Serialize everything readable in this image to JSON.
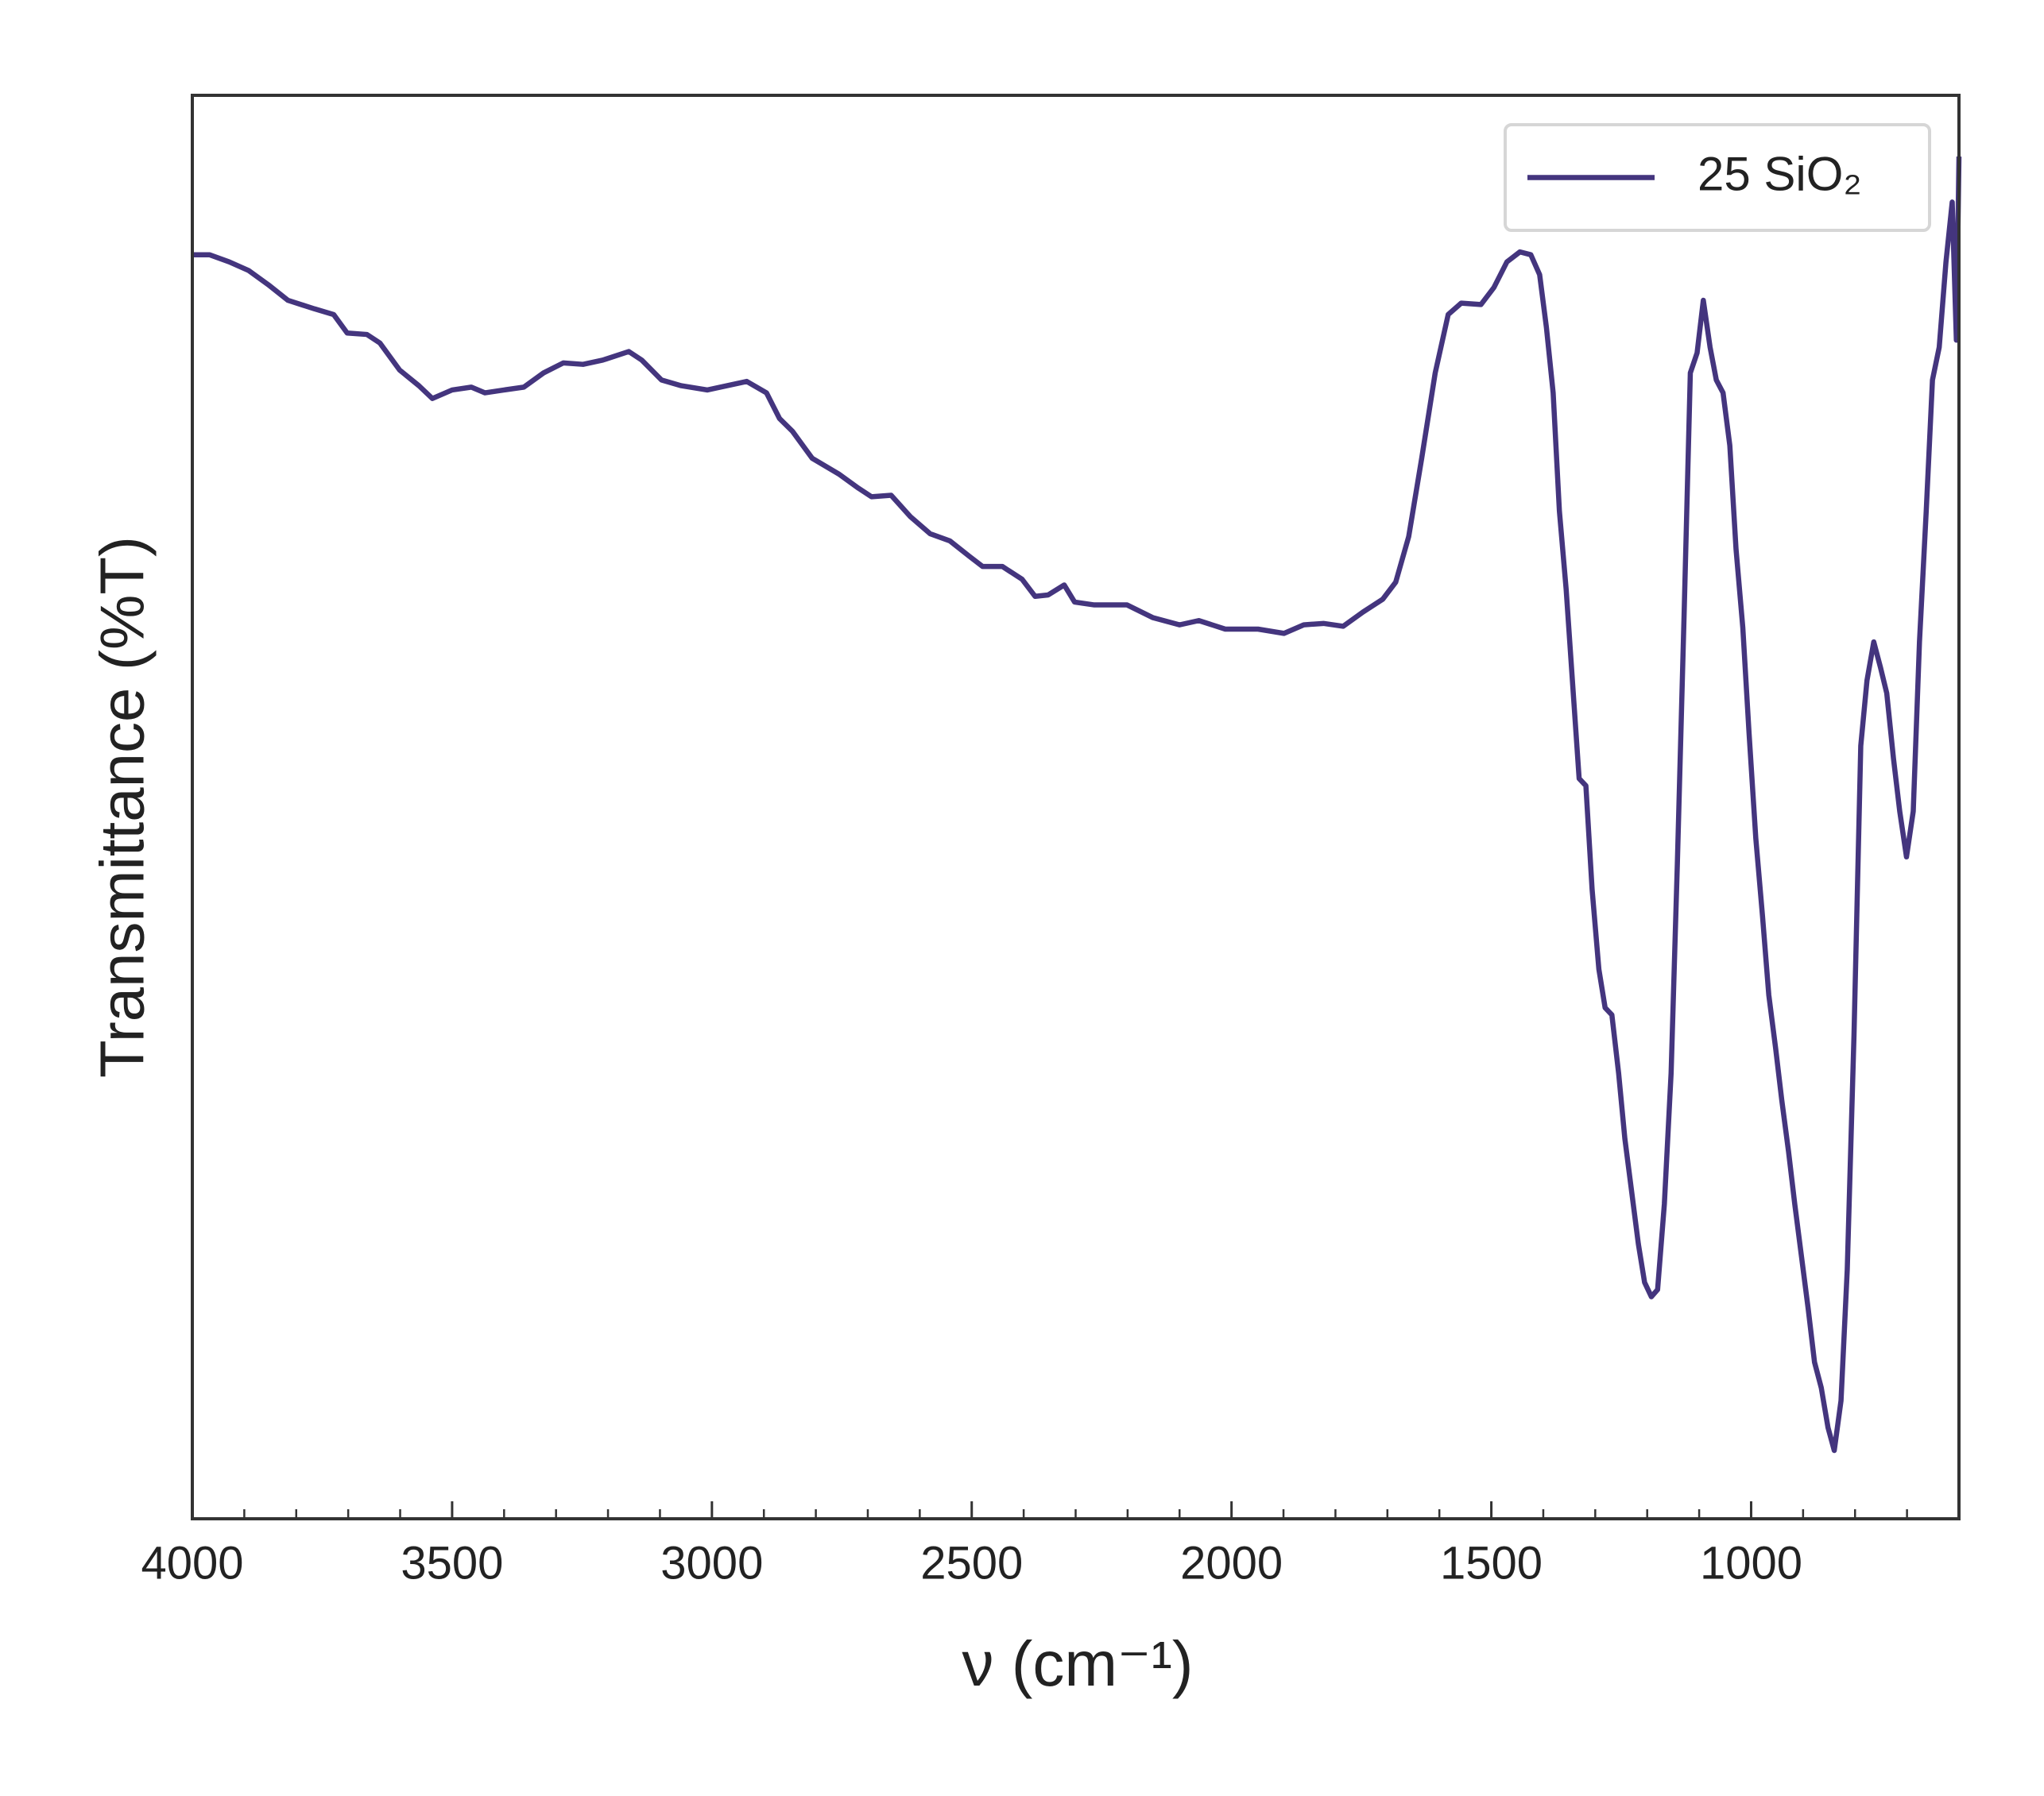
{
  "chart_data": {
    "type": "line",
    "xlabel": "ν (cm⁻¹)",
    "ylabel": "Transmittance (%T)",
    "xlim": [
      4000,
      600
    ],
    "ylim": [
      0,
      100
    ],
    "xticks": [
      4000,
      3500,
      3000,
      2500,
      2000,
      1500,
      1000
    ],
    "xminorticks": [
      3900,
      3800,
      3700,
      3600,
      3400,
      3300,
      3200,
      3100,
      2900,
      2800,
      2700,
      2600,
      2400,
      2300,
      2200,
      2100,
      1900,
      1800,
      1700,
      1600,
      1400,
      1300,
      1200,
      1100,
      900,
      800,
      700
    ],
    "legend": "upper right",
    "x": [
      4000,
      3967,
      3929,
      3892,
      3854,
      3816,
      3765,
      3728,
      3702,
      3664,
      3639,
      3601,
      3564,
      3538,
      3500,
      3463,
      3437,
      3400,
      3362,
      3324,
      3286,
      3248,
      3210,
      3160,
      3135,
      3097,
      3059,
      3009,
      2971,
      2933,
      2895,
      2870,
      2845,
      2807,
      2756,
      2718,
      2693,
      2655,
      2618,
      2580,
      2542,
      2504,
      2479,
      2441,
      2403,
      2378,
      2353,
      2322,
      2302,
      2264,
      2201,
      2151,
      2100,
      2063,
      2012,
      1949,
      1899,
      1861,
      1823,
      1785,
      1747,
      1709,
      1684,
      1659,
      1634,
      1608,
      1583,
      1558,
      1520,
      1495,
      1470,
      1445,
      1424,
      1407,
      1394,
      1381,
      1369,
      1356,
      1344,
      1331,
      1318,
      1306,
      1293,
      1281,
      1268,
      1255,
      1243,
      1230,
      1217,
      1205,
      1192,
      1180,
      1167,
      1154,
      1142,
      1129,
      1117,
      1104,
      1092,
      1079,
      1067,
      1054,
      1041,
      1029,
      1016,
      1004,
      991,
      978,
      966,
      953,
      941,
      928,
      916,
      903,
      890,
      878,
      865,
      852,
      840,
      827,
      815,
      802,
      789,
      777,
      764,
      751,
      739,
      726,
      714,
      701,
      688,
      676,
      663,
      651,
      638,
      625,
      613,
      605,
      600
    ],
    "series": [
      {
        "name": "25 SiO₂",
        "color": "#44357e",
        "values": [
          88.8,
          88.8,
          88.3,
          87.7,
          86.7,
          85.6,
          85.0,
          84.6,
          83.3,
          83.2,
          82.6,
          80.7,
          79.6,
          78.7,
          79.3,
          79.5,
          79.1,
          79.3,
          79.5,
          80.5,
          81.2,
          81.1,
          81.4,
          82.0,
          81.4,
          80.0,
          79.6,
          79.3,
          79.6,
          79.9,
          79.1,
          77.3,
          76.4,
          74.5,
          73.4,
          72.4,
          71.8,
          71.9,
          70.4,
          69.2,
          68.7,
          67.6,
          66.9,
          66.9,
          66.0,
          64.8,
          64.9,
          65.6,
          64.4,
          64.2,
          64.2,
          63.3,
          62.8,
          63.1,
          62.5,
          62.5,
          62.2,
          62.8,
          62.9,
          62.7,
          63.7,
          64.6,
          65.8,
          69.0,
          74.5,
          80.5,
          84.6,
          85.4,
          85.3,
          86.5,
          88.3,
          89.0,
          88.8,
          87.4,
          83.7,
          79.1,
          70.8,
          65.3,
          58.9,
          52.0,
          51.5,
          44.2,
          38.6,
          35.9,
          35.4,
          31.3,
          26.7,
          23.0,
          19.3,
          16.6,
          15.6,
          16.1,
          22.1,
          31.3,
          46.0,
          63.5,
          80.5,
          81.9,
          85.6,
          82.3,
          80.0,
          79.1,
          75.4,
          68.1,
          62.6,
          55.2,
          47.8,
          42.3,
          36.8,
          33.1,
          29.4,
          25.8,
          22.1,
          18.4,
          14.7,
          11.0,
          9.2,
          6.4,
          4.8,
          8.3,
          17.5,
          34.0,
          54.3,
          58.9,
          61.6,
          59.8,
          58.0,
          53.4,
          49.7,
          46.5,
          49.7,
          61.6,
          70.8,
          80.0,
          82.3,
          88.3,
          92.5,
          82.8,
          95.7
        ]
      }
    ]
  }
}
